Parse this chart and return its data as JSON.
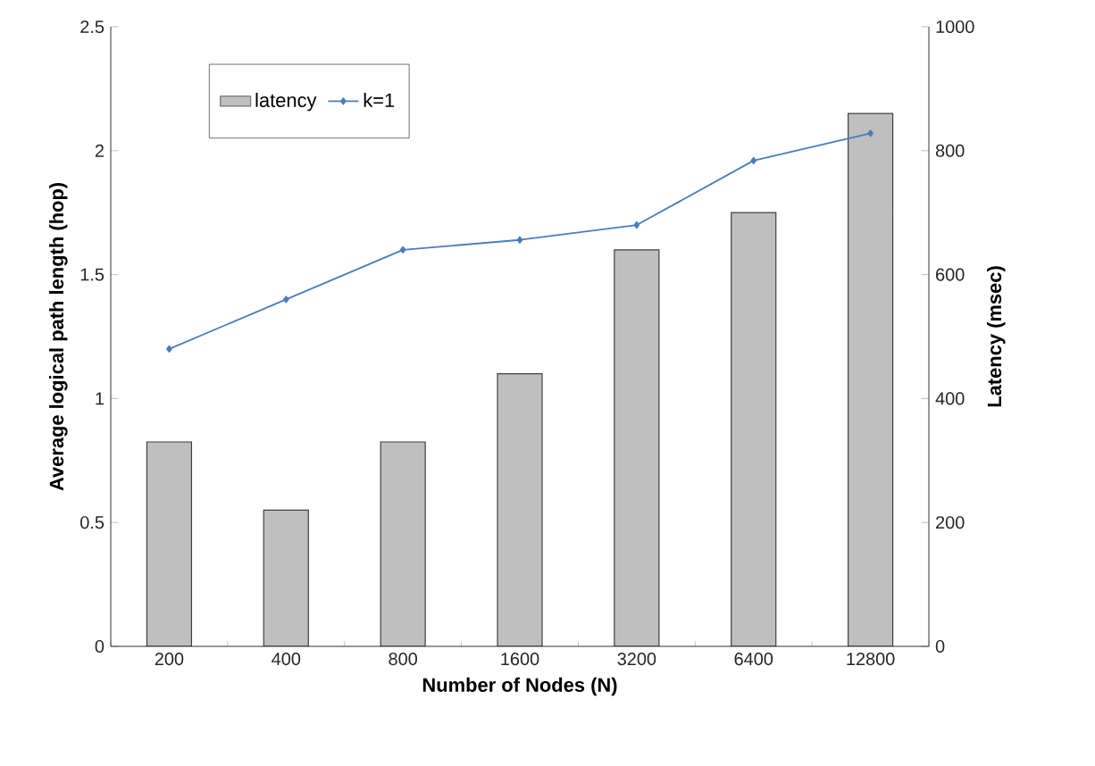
{
  "chart_data": {
    "type": "bar",
    "xlabel": "Number of Nodes (N)",
    "ylabel": "Average logical path length (hop)",
    "y2label": "Latency (msec)",
    "categories": [
      "200",
      "400",
      "800",
      "1600",
      "3200",
      "6400",
      "12800"
    ],
    "series": [
      {
        "name": "latency",
        "axis": "y2",
        "color": "#bfbfbf",
        "values": [
          330,
          220,
          330,
          440,
          640,
          700,
          860
        ]
      },
      {
        "name": "k=1",
        "type": "line",
        "axis": "y",
        "color": "#4a7ebb",
        "marker": "diamond",
        "values": [
          1.2,
          1.4,
          1.6,
          1.64,
          1.7,
          1.96,
          2.07
        ]
      }
    ],
    "ylim": [
      0,
      2.5
    ],
    "yticks": [
      0,
      0.5,
      1,
      1.5,
      2,
      2.5
    ],
    "y2lim": [
      0,
      1000
    ],
    "y2ticks": [
      0,
      200,
      400,
      600,
      800,
      1000
    ],
    "legend": "top left"
  }
}
